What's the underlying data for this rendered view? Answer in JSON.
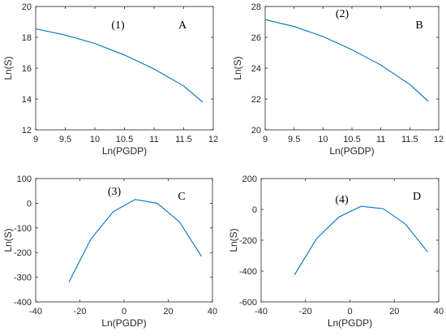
{
  "chart_data": [
    {
      "type": "line",
      "panel_number": "(1)",
      "panel_letter": "A",
      "xlabel": "Ln(PGDP)",
      "ylabel": "Ln(S)",
      "xlim": [
        9,
        12
      ],
      "ylim": [
        12,
        20
      ],
      "xticks": [
        "9",
        "9.5",
        "10",
        "10.5",
        "11",
        "11.5",
        "12"
      ],
      "yticks": [
        "12",
        "14",
        "16",
        "18",
        "20"
      ],
      "line_color": "#0072BD",
      "series": [
        {
          "x": [
            9.0,
            9.5,
            10.0,
            10.5,
            11.0,
            11.5,
            11.82
          ],
          "y": [
            18.55,
            18.15,
            17.6,
            16.85,
            15.95,
            14.85,
            13.8
          ]
        }
      ]
    },
    {
      "type": "line",
      "panel_number": "(2)",
      "panel_letter": "B",
      "xlabel": "Ln(PGDP)",
      "ylabel": "Ln(S)",
      "xlim": [
        9,
        12
      ],
      "ylim": [
        20,
        28
      ],
      "xticks": [
        "9",
        "9.5",
        "10",
        "10.5",
        "11",
        "11.5",
        "12"
      ],
      "yticks": [
        "20",
        "22",
        "24",
        "26",
        "28"
      ],
      "line_color": "#0072BD",
      "series": [
        {
          "x": [
            9.0,
            9.5,
            10.0,
            10.5,
            11.0,
            11.5,
            11.82
          ],
          "y": [
            27.15,
            26.7,
            26.05,
            25.2,
            24.2,
            22.95,
            21.85
          ]
        }
      ]
    },
    {
      "type": "line",
      "panel_number": "(3)",
      "panel_letter": "C",
      "xlabel": "Ln(PGDP)",
      "ylabel": "Ln(S)",
      "xlim": [
        -40,
        40
      ],
      "ylim": [
        -400,
        100
      ],
      "xticks": [
        "-40",
        "-20",
        "0",
        "20",
        "40"
      ],
      "yticks": [
        "-400",
        "-300",
        "-200",
        "-100",
        "0",
        "100"
      ],
      "line_color": "#0072BD",
      "series": [
        {
          "x": [
            -25,
            -15,
            -5,
            5,
            15,
            25,
            35
          ],
          "y": [
            -320,
            -145,
            -35,
            15,
            0,
            -75,
            -215
          ]
        }
      ]
    },
    {
      "type": "line",
      "panel_number": "(4)",
      "panel_letter": "D",
      "xlabel": "Ln(PGDP)",
      "ylabel": "Ln(S)",
      "xlim": [
        -40,
        40
      ],
      "ylim": [
        -600,
        200
      ],
      "xticks": [
        "-40",
        "-20",
        "0",
        "20",
        "40"
      ],
      "yticks": [
        "-600",
        "-400",
        "-200",
        "0",
        "200"
      ],
      "line_color": "#0072BD",
      "series": [
        {
          "x": [
            -25,
            -15,
            -5,
            5,
            15,
            25,
            35
          ],
          "y": [
            -425,
            -190,
            -50,
            20,
            5,
            -95,
            -275
          ]
        }
      ]
    }
  ]
}
